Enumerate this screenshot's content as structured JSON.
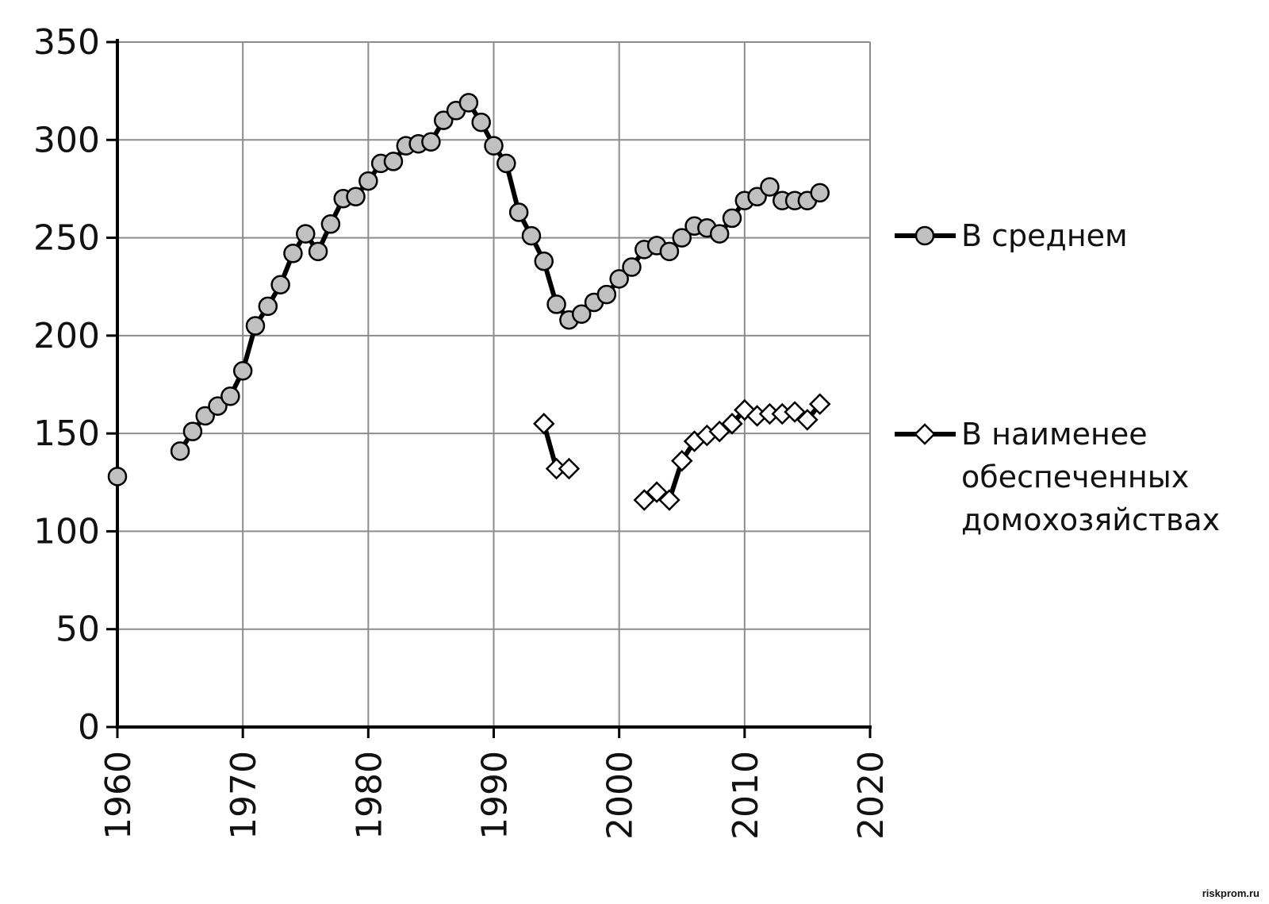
{
  "chart_data": {
    "type": "line",
    "title": "",
    "xlabel": "",
    "ylabel": "",
    "xlim": [
      1960,
      2020
    ],
    "ylim": [
      0,
      350
    ],
    "x_ticks": [
      "1960",
      "1970",
      "1980",
      "1990",
      "2000",
      "2010",
      "2020"
    ],
    "y_ticks": [
      "0",
      "50",
      "100",
      "150",
      "200",
      "250",
      "300",
      "350"
    ],
    "grid": true,
    "legend_position": "right",
    "series": [
      {
        "name": "В среднем",
        "marker": "circle",
        "marker_fill": "#c0c0c0",
        "line_color": "#000000",
        "points": [
          [
            1960,
            128
          ],
          [
            1965,
            141
          ],
          [
            1966,
            151
          ],
          [
            1967,
            159
          ],
          [
            1968,
            164
          ],
          [
            1969,
            169
          ],
          [
            1970,
            182
          ],
          [
            1971,
            205
          ],
          [
            1972,
            215
          ],
          [
            1973,
            226
          ],
          [
            1974,
            242
          ],
          [
            1975,
            252
          ],
          [
            1976,
            243
          ],
          [
            1977,
            257
          ],
          [
            1978,
            270
          ],
          [
            1979,
            271
          ],
          [
            1980,
            279
          ],
          [
            1981,
            288
          ],
          [
            1982,
            289
          ],
          [
            1983,
            297
          ],
          [
            1984,
            298
          ],
          [
            1985,
            299
          ],
          [
            1986,
            310
          ],
          [
            1987,
            315
          ],
          [
            1988,
            319
          ],
          [
            1989,
            309
          ],
          [
            1990,
            297
          ],
          [
            1991,
            288
          ],
          [
            1992,
            263
          ],
          [
            1993,
            251
          ],
          [
            1994,
            238
          ],
          [
            1995,
            216
          ],
          [
            1996,
            208
          ],
          [
            1997,
            211
          ],
          [
            1998,
            217
          ],
          [
            1999,
            221
          ],
          [
            2000,
            229
          ],
          [
            2001,
            235
          ],
          [
            2002,
            244
          ],
          [
            2003,
            246
          ],
          [
            2004,
            243
          ],
          [
            2005,
            250
          ],
          [
            2006,
            256
          ],
          [
            2007,
            255
          ],
          [
            2008,
            252
          ],
          [
            2009,
            260
          ],
          [
            2010,
            269
          ],
          [
            2011,
            271
          ],
          [
            2012,
            276
          ],
          [
            2013,
            269
          ],
          [
            2014,
            269
          ],
          [
            2015,
            269
          ],
          [
            2016,
            273
          ]
        ]
      },
      {
        "name": "В наименее обеспеченных домохозяйствах",
        "name_lines": [
          "В наименее",
          "обеспеченных",
          "домохозяйствах"
        ],
        "marker": "diamond",
        "marker_fill": "#ffffff",
        "line_color": "#000000",
        "points": [
          [
            1994,
            155
          ],
          [
            1995,
            132
          ],
          [
            1996,
            132
          ],
          [
            2002,
            116
          ],
          [
            2003,
            120
          ],
          [
            2004,
            116
          ],
          [
            2005,
            136
          ],
          [
            2006,
            146
          ],
          [
            2007,
            149
          ],
          [
            2008,
            151
          ],
          [
            2009,
            155
          ],
          [
            2010,
            162
          ],
          [
            2011,
            159
          ],
          [
            2012,
            160
          ],
          [
            2013,
            160
          ],
          [
            2014,
            161
          ],
          [
            2015,
            157
          ],
          [
            2016,
            165
          ]
        ]
      }
    ]
  },
  "watermark": "riskprom.ru"
}
